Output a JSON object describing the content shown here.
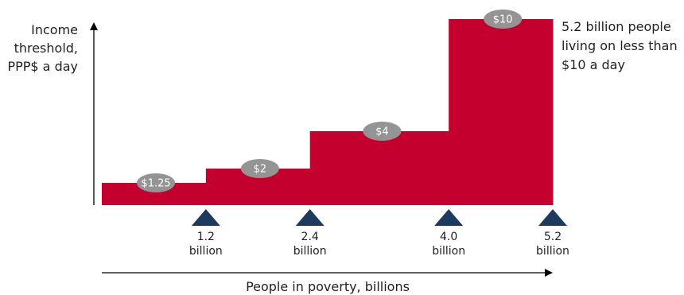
{
  "chart_data": {
    "type": "area",
    "ylabel_lines": [
      "Income",
      "threshold,",
      "PPP$ a day"
    ],
    "xlabel": "People in poverty, billions",
    "annotation_lines": [
      "5.2 billion people",
      "living on less than",
      "$10 a day"
    ],
    "steps": [
      {
        "label": "$1.25",
        "threshold": 1.25,
        "x_start": 0.0,
        "x_end": 1.2
      },
      {
        "label": "$2",
        "threshold": 2,
        "x_start": 1.2,
        "x_end": 2.4
      },
      {
        "label": "$4",
        "threshold": 4,
        "x_start": 2.4,
        "x_end": 4.0
      },
      {
        "label": "$10",
        "threshold": 10,
        "x_start": 4.0,
        "x_end": 5.2
      }
    ],
    "markers": [
      {
        "value": 1.2,
        "label_top": "1.2",
        "label_bottom": "billion"
      },
      {
        "value": 2.4,
        "label_top": "2.4",
        "label_bottom": "billion"
      },
      {
        "value": 4.0,
        "label_top": "4.0",
        "label_bottom": "billion"
      },
      {
        "value": 5.2,
        "label_top": "5.2",
        "label_bottom": "billion"
      }
    ],
    "colors": {
      "area": "#c4002f",
      "bubble": "#949494",
      "marker": "#1e3a5f",
      "axis": "#000000"
    }
  }
}
